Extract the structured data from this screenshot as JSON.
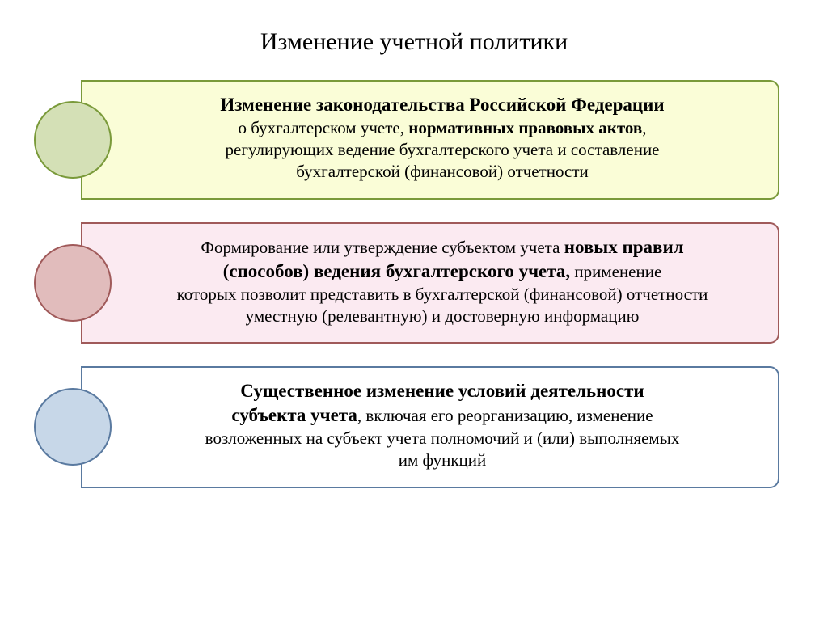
{
  "title": "Изменение учетной политики",
  "blocks": [
    {
      "circle_fill": "#d4e0b6",
      "circle_border": "#7a9a3a",
      "box_fill": "#fafdd7",
      "box_border": "#7a9a3a",
      "html": "<span class=\"big-bold\">Изменение законодательства Российской Федерации</span><br>о бухгалтерском учете, <b>нормативных правовых актов</b>,<br>регулирующих ведение бухгалтерского учета и составление<br>бухгалтерской (финансовой) отчетности"
    },
    {
      "circle_fill": "#e1bcbc",
      "circle_border": "#a05a5a",
      "box_fill": "#fbeaf1",
      "box_border": "#a05a5a",
      "html": "Формирование или утверждение субъектом учета <span class=\"big-bold\">новых правил<br>(способов) ведения бухгалтерского учета,</span> применение<br>которых позволит представить в бухгалтерской (финансовой) отчетности<br>уместную (релевантную) и достоверную информацию"
    },
    {
      "circle_fill": "#c7d7e8",
      "circle_border": "#5a7aa0",
      "box_fill": "#ffffff",
      "box_border": "#5a7aa0",
      "html": "<span class=\"big-bold\">Существенное изменение условий деятельности<br>субъекта учета</span>, включая его реорганизацию, изменение<br>возложенных на субъект учета полномочий и (или) выполняемых<br>им функций"
    }
  ]
}
